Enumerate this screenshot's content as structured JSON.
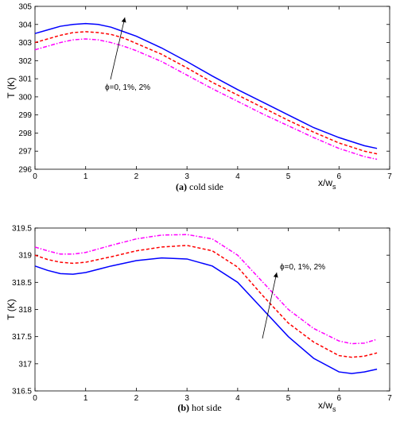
{
  "chart_data": [
    {
      "type": "line",
      "caption_letter": "(a)",
      "caption_text": " cold side",
      "xlabel_main": "x/w",
      "xlabel_sub": "s",
      "ylabel": "T (K)",
      "xlim": [
        0,
        7
      ],
      "ylim": [
        296,
        305
      ],
      "xticks": [
        "0",
        "1",
        "2",
        "3",
        "4",
        "5",
        "6",
        "7"
      ],
      "yticks": [
        "296",
        "297",
        "298",
        "299",
        "300",
        "301",
        "302",
        "303",
        "304",
        "305"
      ],
      "annotation": "ϕ=0, 1%, 2%",
      "series": [
        {
          "color": "#0000ff",
          "style": "solid",
          "x": [
            0,
            0.25,
            0.5,
            0.75,
            1,
            1.25,
            1.5,
            1.75,
            2,
            2.5,
            3,
            3.5,
            4,
            4.5,
            5,
            5.5,
            6,
            6.5,
            6.75
          ],
          "values": [
            303.5,
            303.7,
            303.9,
            304.0,
            304.05,
            304.0,
            303.85,
            303.6,
            303.35,
            302.7,
            301.95,
            301.15,
            300.4,
            299.7,
            299.0,
            298.3,
            297.75,
            297.3,
            297.15
          ]
        },
        {
          "color": "#ff0000",
          "style": "dashed",
          "x": [
            0,
            0.25,
            0.5,
            0.75,
            1,
            1.25,
            1.5,
            1.75,
            2,
            2.5,
            3,
            3.5,
            4,
            4.5,
            5,
            5.5,
            6,
            6.5,
            6.75
          ],
          "values": [
            303.0,
            303.2,
            303.4,
            303.55,
            303.6,
            303.55,
            303.45,
            303.25,
            302.95,
            302.35,
            301.6,
            300.8,
            300.1,
            299.4,
            298.7,
            298.05,
            297.45,
            297.0,
            296.85
          ]
        },
        {
          "color": "#ff00ff",
          "style": "dashdot",
          "x": [
            0,
            0.25,
            0.5,
            0.75,
            1,
            1.25,
            1.5,
            1.75,
            2,
            2.5,
            3,
            3.5,
            4,
            4.5,
            5,
            5.5,
            6,
            6.5,
            6.75
          ],
          "values": [
            302.6,
            302.8,
            303.0,
            303.15,
            303.2,
            303.15,
            303.0,
            302.8,
            302.55,
            301.95,
            301.2,
            300.45,
            299.75,
            299.05,
            298.4,
            297.75,
            297.15,
            296.7,
            296.55
          ]
        }
      ]
    },
    {
      "type": "line",
      "caption_letter": "(b)",
      "caption_text": " hot side",
      "xlabel_main": "x/w",
      "xlabel_sub": "s",
      "ylabel": "T (K)",
      "xlim": [
        0,
        7
      ],
      "ylim": [
        316.5,
        319.5
      ],
      "xticks": [
        "0",
        "1",
        "2",
        "3",
        "4",
        "5",
        "6",
        "7"
      ],
      "yticks": [
        "316.5",
        "317",
        "317.5",
        "318",
        "318.5",
        "319",
        "319.5"
      ],
      "annotation": "ϕ=0, 1%, 2%",
      "series": [
        {
          "color": "#0000ff",
          "style": "solid",
          "x": [
            0,
            0.25,
            0.5,
            0.75,
            1,
            1.5,
            2,
            2.5,
            3,
            3.5,
            4,
            4.5,
            5,
            5.5,
            6,
            6.25,
            6.5,
            6.75
          ],
          "values": [
            318.8,
            318.72,
            318.66,
            318.65,
            318.68,
            318.8,
            318.9,
            318.95,
            318.93,
            318.8,
            318.5,
            318.0,
            317.5,
            317.1,
            316.85,
            316.82,
            316.85,
            316.9
          ]
        },
        {
          "color": "#ff0000",
          "style": "dashed",
          "x": [
            0,
            0.25,
            0.5,
            0.75,
            1,
            1.5,
            2,
            2.5,
            3,
            3.5,
            4,
            4.5,
            5,
            5.5,
            6,
            6.25,
            6.5,
            6.75
          ],
          "values": [
            319.0,
            318.92,
            318.87,
            318.85,
            318.87,
            318.97,
            319.08,
            319.15,
            319.18,
            319.08,
            318.78,
            318.25,
            317.75,
            317.4,
            317.15,
            317.12,
            317.14,
            317.2
          ]
        },
        {
          "color": "#ff00ff",
          "style": "dashdot",
          "x": [
            0,
            0.25,
            0.5,
            0.75,
            1,
            1.5,
            2,
            2.5,
            3,
            3.5,
            4,
            4.5,
            5,
            5.5,
            6,
            6.25,
            6.5,
            6.75
          ],
          "values": [
            319.15,
            319.08,
            319.02,
            319.02,
            319.05,
            319.18,
            319.3,
            319.37,
            319.38,
            319.3,
            319.0,
            318.5,
            318.0,
            317.65,
            317.42,
            317.37,
            317.38,
            317.45
          ]
        }
      ]
    }
  ]
}
